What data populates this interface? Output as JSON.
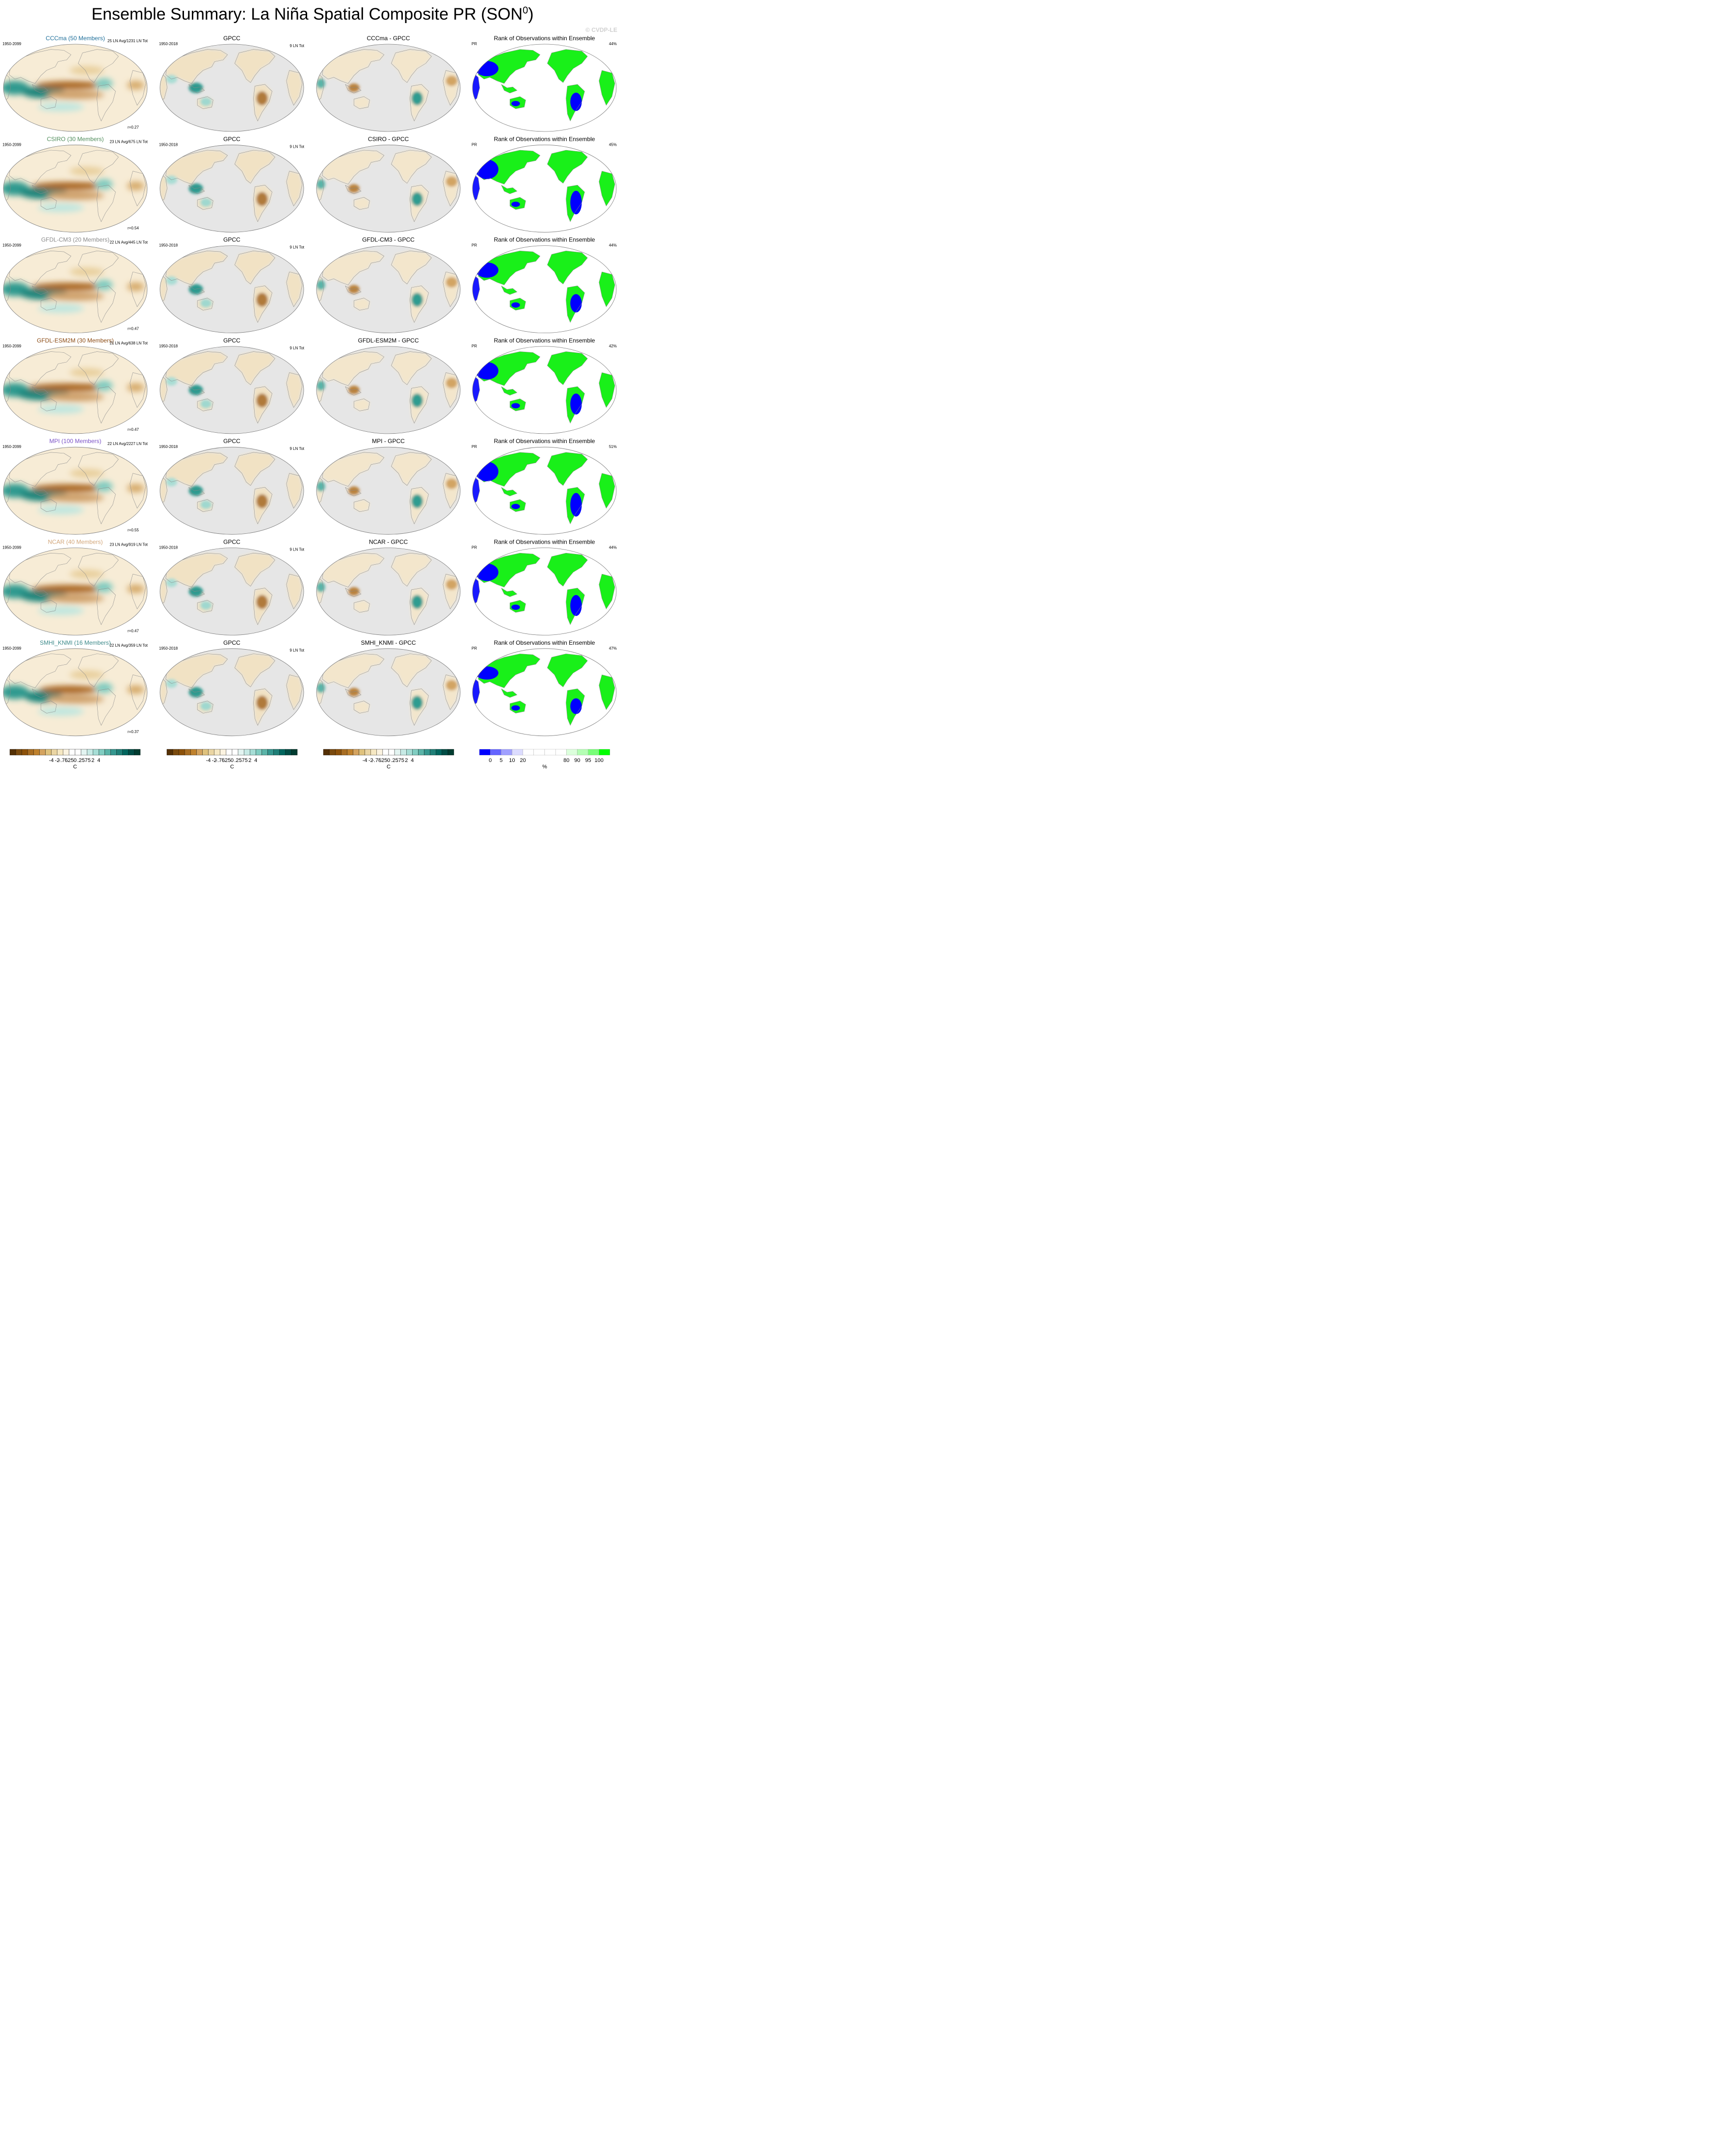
{
  "title": "Ensemble Summary: La Niña Spatial Composite PR (SON",
  "title_sup": "0",
  "title_close": ")",
  "copyright": "© CVDP-LE",
  "chart_data": {
    "type": "heatmap",
    "columns": [
      {
        "kind": "model"
      },
      {
        "kind": "obs",
        "title": "GPCC",
        "period": "1950-2018",
        "count": "9 LN Tot"
      },
      {
        "kind": "diff"
      },
      {
        "kind": "rank",
        "title": "Rank of Observations within Ensemble",
        "var": "PR"
      }
    ],
    "rows": [
      {
        "model": "CCCma (50 Members)",
        "color": "#1f6f9a",
        "period": "1950-2099",
        "stats": "25 LN Avg/1231 LN Tot",
        "r": "r=0.27",
        "diff_title": "CCCma - GPCC",
        "rank_pct": "44%",
        "warm_pool": 0.9,
        "rank_blue": 0.35
      },
      {
        "model": "CSIRO (30 Members)",
        "color": "#4f8c5a",
        "period": "1950-2099",
        "stats": "23 LN Avg/675 LN Tot",
        "r": "r=0.54",
        "diff_title": "CSIRO - GPCC",
        "rank_pct": "45%",
        "warm_pool": 1.0,
        "rank_blue": 0.45
      },
      {
        "model": "GFDL-CM3 (20 Members)",
        "color": "#8a8a8a",
        "period": "1950-2099",
        "stats": "22 LN Avg/445 LN Tot",
        "r": "r=0.47",
        "diff_title": "GFDL-CM3 - GPCC",
        "rank_pct": "44%",
        "warm_pool": 1.0,
        "rank_blue": 0.35
      },
      {
        "model": "GFDL-ESM2M (30 Members)",
        "color": "#8b4a13",
        "period": "1950-2099",
        "stats": "21 LN Avg/638 LN Tot",
        "r": "r=0.47",
        "diff_title": "GFDL-ESM2M - GPCC",
        "rank_pct": "42%",
        "warm_pool": 1.1,
        "rank_blue": 0.4
      },
      {
        "model": "MPI (100 Members)",
        "color": "#7b52c7",
        "period": "1950-2099",
        "stats": "22 LN Avg/2227 LN Tot",
        "r": "r=0.55",
        "diff_title": "MPI - GPCC",
        "rank_pct": "51%",
        "warm_pool": 1.0,
        "rank_blue": 0.45
      },
      {
        "model": "NCAR (40 Members)",
        "color": "#d2a679",
        "period": "1950-2099",
        "stats": "23 LN Avg/919 LN Tot",
        "r": "r=0.47",
        "diff_title": "NCAR - GPCC",
        "rank_pct": "44%",
        "warm_pool": 1.0,
        "rank_blue": 0.4
      },
      {
        "model": "SMHI_KNMI (16 Members)",
        "color": "#3c8a8a",
        "period": "1950-2099",
        "stats": "22 LN Avg/359 LN Tot",
        "r": "r=0.37",
        "diff_title": "SMHI_KNMI - GPCC",
        "rank_pct": "47%",
        "warm_pool": 0.8,
        "rank_blue": 0.3
      }
    ],
    "colorbar_pr": {
      "labels": [
        "-4",
        "-2",
        "-.75",
        "-.25",
        "0",
        ".25",
        ".75",
        "2",
        "4"
      ],
      "unit": "C",
      "colors": [
        "#543005",
        "#7a4a0e",
        "#8c510a",
        "#a86d22",
        "#bf812d",
        "#d4a35f",
        "#dfc27d",
        "#ead5a3",
        "#f6e8c3",
        "#fbf3e0",
        "#ffffff",
        "#ffffff",
        "#e3f4f1",
        "#c7eae5",
        "#a6ddd5",
        "#80cdc1",
        "#5ab4a8",
        "#35978f",
        "#1f7f77",
        "#01665e",
        "#004d45",
        "#003c30"
      ]
    },
    "colorbar_rank": {
      "labels": [
        "0",
        "5",
        "10",
        "20",
        "80",
        "90",
        "95",
        "100"
      ],
      "unit": "%",
      "colors": [
        "#0000ff",
        "#6464ff",
        "#a0a0ff",
        "#dcdcff",
        "#ffffff",
        "#ffffff",
        "#ffffff",
        "#ffffff",
        "#dcffdc",
        "#b4ffb4",
        "#78ff78",
        "#00ff00"
      ]
    }
  }
}
